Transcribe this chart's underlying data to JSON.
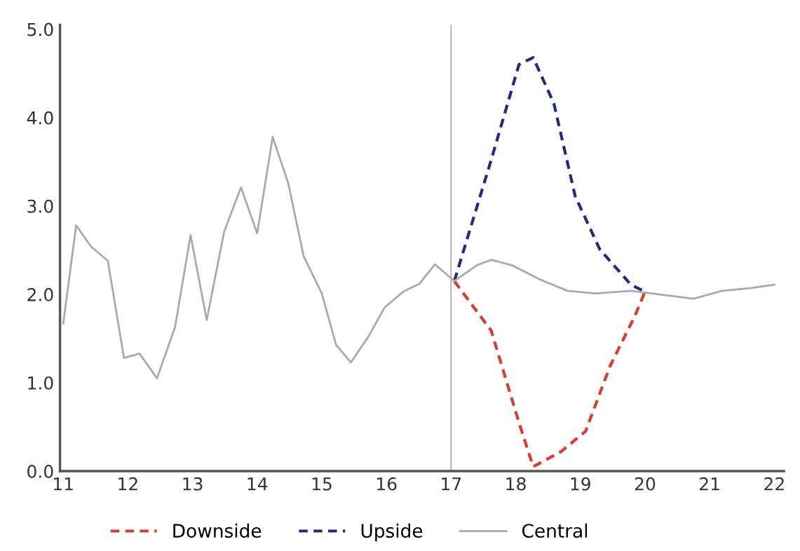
{
  "chart_data": {
    "type": "line",
    "xlim": [
      10.95,
      22.15
    ],
    "xticks": [
      11,
      12,
      13,
      14,
      15,
      16,
      17,
      18,
      19,
      20,
      21,
      22
    ],
    "ylim": [
      0,
      5.05
    ],
    "yticks": [
      {
        "value": 0,
        "label": "0.0"
      },
      {
        "value": 1,
        "label": "1.0"
      },
      {
        "value": 2,
        "label": "2.0"
      },
      {
        "value": 3,
        "label": "3.0"
      },
      {
        "value": 4,
        "label": "4.0"
      },
      {
        "value": 5,
        "label": "5.0"
      }
    ],
    "grid": false,
    "legend": "bottom",
    "ref_lines": [
      {
        "axis": "x",
        "value": 17,
        "color": "#999999"
      }
    ],
    "series": [
      {
        "name": "Downside",
        "color": "#e03a2f",
        "line_style": "dashed",
        "x": [
          17.05,
          17.62,
          18.05,
          18.27,
          18.7,
          19.08,
          19.46,
          19.84,
          20.0
        ],
        "values": [
          2.15,
          1.59,
          0.55,
          0.05,
          0.22,
          0.45,
          1.19,
          1.75,
          2.03
        ]
      },
      {
        "name": "Upside",
        "color": "#1f2a8a",
        "line_style": "dashed",
        "x": [
          17.05,
          17.62,
          18.05,
          18.27,
          18.59,
          18.92,
          19.3,
          19.78,
          20.0
        ],
        "values": [
          2.15,
          3.52,
          4.6,
          4.68,
          4.16,
          3.11,
          2.51,
          2.11,
          2.03
        ]
      },
      {
        "name": "Central",
        "color": "#aaaaaa",
        "line_style": "solid",
        "x": [
          11.0,
          11.2,
          11.43,
          11.69,
          11.94,
          12.18,
          12.45,
          12.73,
          12.97,
          13.22,
          13.49,
          13.75,
          14.0,
          14.24,
          14.48,
          14.72,
          15.0,
          15.22,
          15.45,
          15.72,
          15.97,
          16.26,
          16.51,
          16.75,
          17.05,
          17.4,
          17.62,
          17.94,
          18.37,
          18.8,
          19.23,
          19.78,
          20.32,
          20.75,
          21.19,
          21.62,
          22.0
        ],
        "values": [
          1.67,
          2.78,
          2.54,
          2.38,
          1.28,
          1.33,
          1.05,
          1.63,
          2.67,
          1.71,
          2.71,
          3.21,
          2.69,
          3.78,
          3.26,
          2.43,
          2.01,
          1.43,
          1.23,
          1.52,
          1.85,
          2.03,
          2.12,
          2.34,
          2.15,
          2.33,
          2.39,
          2.33,
          2.17,
          2.04,
          2.01,
          2.04,
          1.99,
          1.95,
          2.04,
          2.07,
          2.11
        ]
      }
    ]
  }
}
